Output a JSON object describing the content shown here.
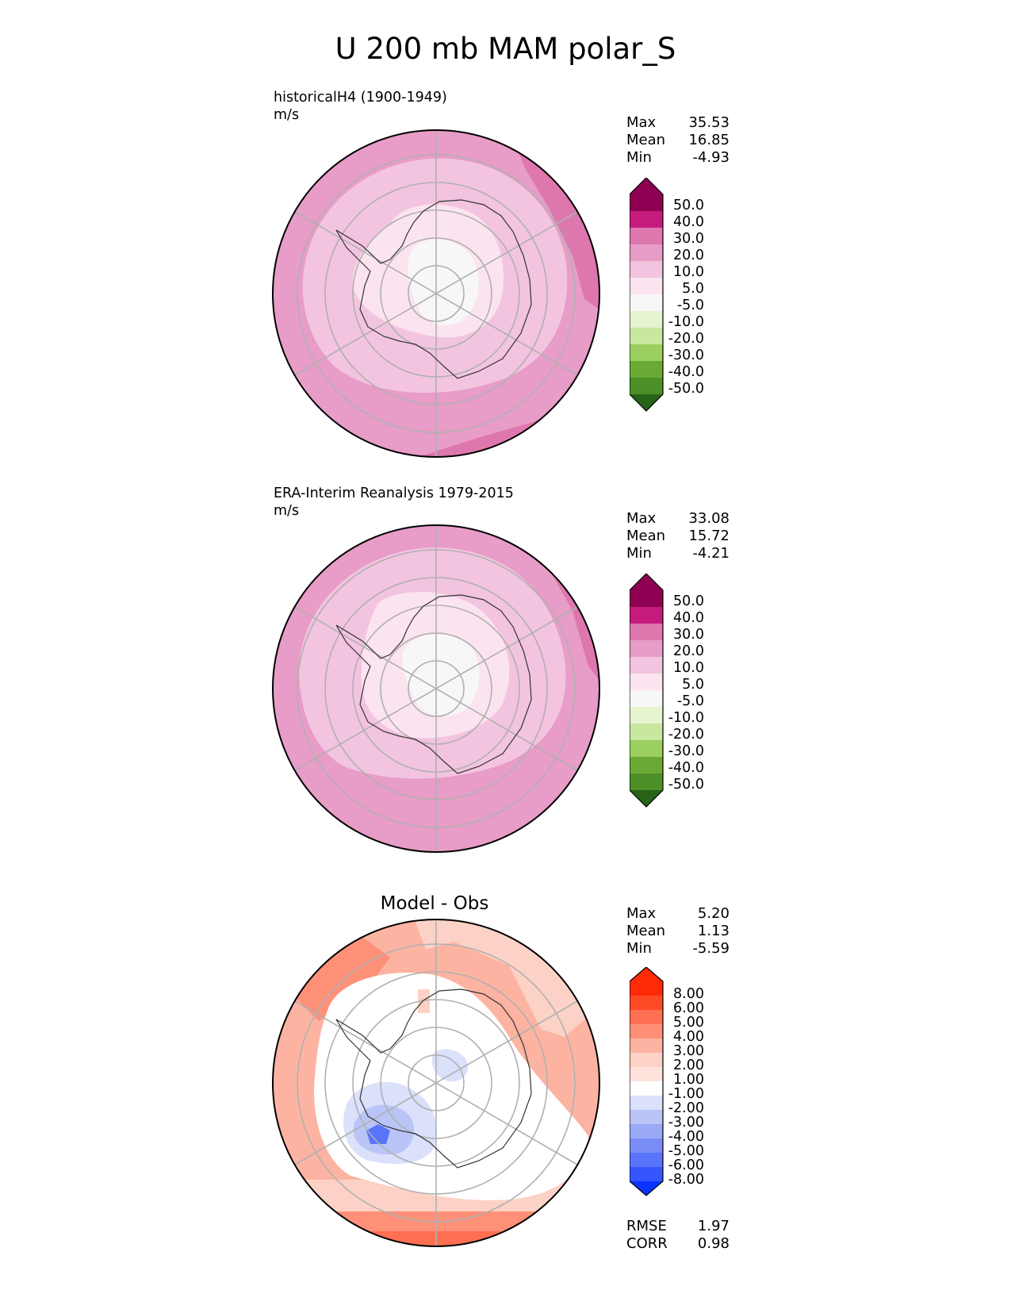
{
  "title": "U 200 mb MAM polar_S",
  "panels": [
    {
      "id": "test",
      "label": "historicalH4 (1900-1949)",
      "units": "m/s",
      "stats": [
        {
          "label": "Max",
          "value": "35.53"
        },
        {
          "label": "Mean",
          "value": "16.85"
        },
        {
          "label": "Min",
          "value": "-4.93"
        }
      ],
      "colorbar_ticks": [
        "50.0",
        "40.0",
        "30.0",
        "20.0",
        "10.0",
        "5.0",
        "-5.0",
        "-10.0",
        "-20.0",
        "-30.0",
        "-40.0",
        "-50.0"
      ]
    },
    {
      "id": "ref",
      "label": "ERA-Interim Reanalysis 1979-2015",
      "units": "m/s",
      "stats": [
        {
          "label": "Max",
          "value": "33.08"
        },
        {
          "label": "Mean",
          "value": "15.72"
        },
        {
          "label": "Min",
          "value": "-4.21"
        }
      ],
      "colorbar_ticks": [
        "50.0",
        "40.0",
        "30.0",
        "20.0",
        "10.0",
        "5.0",
        "-5.0",
        "-10.0",
        "-20.0",
        "-30.0",
        "-40.0",
        "-50.0"
      ]
    },
    {
      "id": "diff",
      "title": "Model - Obs",
      "stats": [
        {
          "label": "Max",
          "value": "5.20"
        },
        {
          "label": "Mean",
          "value": "1.13"
        },
        {
          "label": "Min",
          "value": "-5.59"
        }
      ],
      "colorbar_ticks": [
        "8.00",
        "6.00",
        "5.00",
        "4.00",
        "3.00",
        "2.00",
        "1.00",
        "-1.00",
        "-2.00",
        "-3.00",
        "-4.00",
        "-5.00",
        "-6.00",
        "-8.00"
      ],
      "metrics": [
        {
          "label": "RMSE",
          "value": "1.97"
        },
        {
          "label": "CORR",
          "value": "0.98"
        }
      ]
    }
  ],
  "colors": {
    "field_scale": [
      "#8e0152",
      "#c51b7d",
      "#de77ae",
      "#e89cc8",
      "#f3c4df",
      "#fbe4ef",
      "#f7f7f7",
      "#e6f5d0",
      "#c8e8a0",
      "#9bcf5f",
      "#6aaa34",
      "#4d8f27",
      "#276419"
    ],
    "diff_scale": [
      "#ff2a08",
      "#ff4a26",
      "#ff6f52",
      "#ff9078",
      "#fdb3a1",
      "#fcd2c6",
      "#fde3dc",
      "#ffffff",
      "#dbe0fb",
      "#bac4f6",
      "#9aa9f6",
      "#7a8df6",
      "#5973fb",
      "#3555ff",
      "#0a33ff"
    ]
  }
}
